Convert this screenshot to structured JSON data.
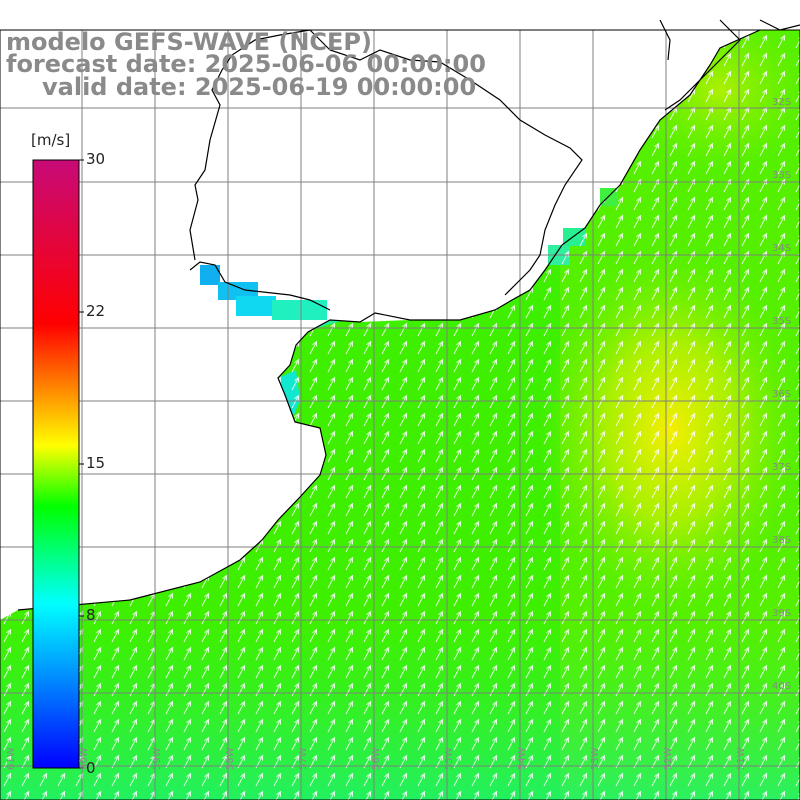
{
  "header": {
    "model_line": "modelo GEFS-WAVE (NCEP)",
    "forecast_line": "forecast date: 2025-06-06 00:00:00",
    "valid_line": "valid date: 2025-06-19 00:00:00"
  },
  "colorbar": {
    "unit": "[m/s]",
    "ticks": [
      "30",
      "22",
      "15",
      "8",
      "0"
    ],
    "tick_values": [
      30,
      22,
      15,
      8,
      0
    ],
    "range": [
      0,
      30
    ],
    "colors": [
      "#0000ff",
      "#00ffff",
      "#00ff00",
      "#ffff00",
      "#ff0000",
      "#c80a78"
    ]
  },
  "map": {
    "field": "wind speed and direction",
    "lat_labels": [
      "32S",
      "33S",
      "34S",
      "35S",
      "36S",
      "37S",
      "38S",
      "39S",
      "40S"
    ],
    "lon_labels": [
      "61W",
      "60W",
      "59W",
      "58W",
      "57W",
      "56W",
      "55W",
      "54W",
      "53W",
      "52W",
      "51W"
    ],
    "extent": {
      "lon_min": -61.5,
      "lon_max": -50.5,
      "lat_min": -40.8,
      "lat_max": -29.8
    },
    "speed_min_region": "coast near Rio de la Plata (~8 m/s)",
    "speed_max_region": "offshore near 52W 37S (~15 m/s)",
    "land_color": "#ffffff",
    "grid_color": "#7f7f7f",
    "coast_color": "#000000",
    "arrow_color": "#ffffff"
  }
}
